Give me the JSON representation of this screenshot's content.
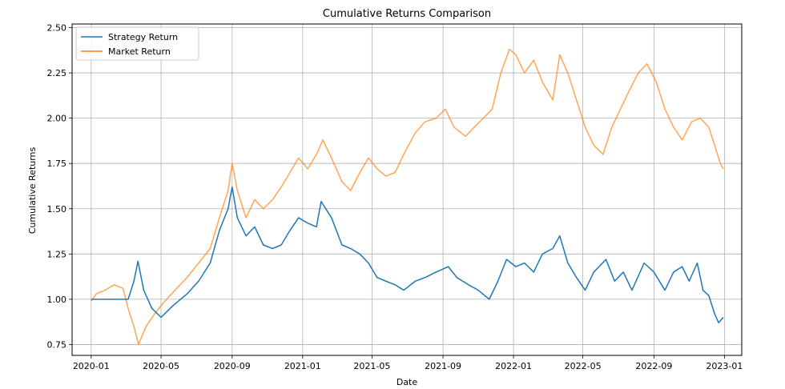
{
  "chart_data": {
    "type": "line",
    "title": "Cumulative Returns Comparison",
    "xlabel": "Date",
    "ylabel": "Cumulative Returns",
    "xlim": [
      "2019-11-29",
      "2023-01-31"
    ],
    "ylim": [
      0.69,
      2.52
    ],
    "x_ticks": [
      "2020-01",
      "2020-05",
      "2020-09",
      "2021-01",
      "2021-05",
      "2021-09",
      "2022-01",
      "2022-05",
      "2022-09",
      "2023-01"
    ],
    "x_tick_dates": [
      "2020-01-01",
      "2020-05-01",
      "2020-09-01",
      "2021-01-01",
      "2021-05-01",
      "2021-09-01",
      "2022-01-01",
      "2022-05-01",
      "2022-09-01",
      "2023-01-01"
    ],
    "y_ticks": [
      "0.75",
      "1.00",
      "1.25",
      "1.50",
      "1.75",
      "2.00",
      "2.25",
      "2.50"
    ],
    "y_tick_values": [
      0.75,
      1.0,
      1.25,
      1.5,
      1.75,
      2.0,
      2.25,
      2.5
    ],
    "grid": true,
    "legend_position": "top-left",
    "series": [
      {
        "name": "Strategy Return",
        "color": "#1f77b4",
        "points": [
          [
            "2020-01-01",
            1.0
          ],
          [
            "2020-02-15",
            1.0
          ],
          [
            "2020-03-05",
            1.0
          ],
          [
            "2020-03-15",
            1.1
          ],
          [
            "2020-03-22",
            1.21
          ],
          [
            "2020-04-01",
            1.05
          ],
          [
            "2020-04-15",
            0.95
          ],
          [
            "2020-05-01",
            0.9
          ],
          [
            "2020-05-20",
            0.96
          ],
          [
            "2020-06-15",
            1.03
          ],
          [
            "2020-07-05",
            1.1
          ],
          [
            "2020-07-25",
            1.2
          ],
          [
            "2020-08-10",
            1.38
          ],
          [
            "2020-08-25",
            1.5
          ],
          [
            "2020-09-01",
            1.62
          ],
          [
            "2020-09-10",
            1.45
          ],
          [
            "2020-09-25",
            1.35
          ],
          [
            "2020-10-10",
            1.4
          ],
          [
            "2020-10-25",
            1.3
          ],
          [
            "2020-11-10",
            1.28
          ],
          [
            "2020-11-25",
            1.3
          ],
          [
            "2020-12-10",
            1.38
          ],
          [
            "2020-12-25",
            1.45
          ],
          [
            "2021-01-10",
            1.42
          ],
          [
            "2021-01-25",
            1.4
          ],
          [
            "2021-02-02",
            1.54
          ],
          [
            "2021-02-20",
            1.45
          ],
          [
            "2021-03-10",
            1.3
          ],
          [
            "2021-03-25",
            1.28
          ],
          [
            "2021-04-10",
            1.25
          ],
          [
            "2021-04-25",
            1.2
          ],
          [
            "2021-05-10",
            1.12
          ],
          [
            "2021-05-25",
            1.1
          ],
          [
            "2021-06-10",
            1.08
          ],
          [
            "2021-06-25",
            1.05
          ],
          [
            "2021-07-15",
            1.1
          ],
          [
            "2021-08-01",
            1.12
          ],
          [
            "2021-08-20",
            1.15
          ],
          [
            "2021-09-10",
            1.18
          ],
          [
            "2021-09-25",
            1.12
          ],
          [
            "2021-10-15",
            1.08
          ],
          [
            "2021-11-01",
            1.05
          ],
          [
            "2021-11-20",
            1.0
          ],
          [
            "2021-12-05",
            1.1
          ],
          [
            "2021-12-20",
            1.22
          ],
          [
            "2022-01-05",
            1.18
          ],
          [
            "2022-01-20",
            1.2
          ],
          [
            "2022-02-05",
            1.15
          ],
          [
            "2022-02-20",
            1.25
          ],
          [
            "2022-03-10",
            1.28
          ],
          [
            "2022-03-22",
            1.35
          ],
          [
            "2022-04-05",
            1.2
          ],
          [
            "2022-04-20",
            1.12
          ],
          [
            "2022-05-05",
            1.05
          ],
          [
            "2022-05-20",
            1.15
          ],
          [
            "2022-06-10",
            1.22
          ],
          [
            "2022-06-25",
            1.1
          ],
          [
            "2022-07-10",
            1.15
          ],
          [
            "2022-07-25",
            1.05
          ],
          [
            "2022-08-15",
            1.2
          ],
          [
            "2022-09-01",
            1.15
          ],
          [
            "2022-09-20",
            1.05
          ],
          [
            "2022-10-05",
            1.15
          ],
          [
            "2022-10-20",
            1.18
          ],
          [
            "2022-11-01",
            1.1
          ],
          [
            "2022-11-15",
            1.2
          ],
          [
            "2022-11-25",
            1.05
          ],
          [
            "2022-12-05",
            1.02
          ],
          [
            "2022-12-15",
            0.92
          ],
          [
            "2022-12-22",
            0.87
          ],
          [
            "2022-12-30",
            0.9
          ]
        ]
      },
      {
        "name": "Market Return",
        "color": "#ff7f0e",
        "points": [
          [
            "2020-01-01",
            0.99
          ],
          [
            "2020-01-10",
            1.03
          ],
          [
            "2020-01-25",
            1.05
          ],
          [
            "2020-02-10",
            1.08
          ],
          [
            "2020-02-25",
            1.06
          ],
          [
            "2020-03-05",
            0.95
          ],
          [
            "2020-03-15",
            0.85
          ],
          [
            "2020-03-23",
            0.75
          ],
          [
            "2020-04-05",
            0.85
          ],
          [
            "2020-04-20",
            0.92
          ],
          [
            "2020-05-05",
            0.98
          ],
          [
            "2020-05-25",
            1.05
          ],
          [
            "2020-06-15",
            1.12
          ],
          [
            "2020-07-05",
            1.2
          ],
          [
            "2020-07-25",
            1.28
          ],
          [
            "2020-08-10",
            1.45
          ],
          [
            "2020-08-25",
            1.6
          ],
          [
            "2020-09-01",
            1.75
          ],
          [
            "2020-09-10",
            1.6
          ],
          [
            "2020-09-25",
            1.45
          ],
          [
            "2020-10-10",
            1.55
          ],
          [
            "2020-10-25",
            1.5
          ],
          [
            "2020-11-10",
            1.55
          ],
          [
            "2020-11-25",
            1.62
          ],
          [
            "2020-12-10",
            1.7
          ],
          [
            "2020-12-25",
            1.78
          ],
          [
            "2021-01-10",
            1.72
          ],
          [
            "2021-01-25",
            1.8
          ],
          [
            "2021-02-05",
            1.88
          ],
          [
            "2021-02-20",
            1.78
          ],
          [
            "2021-03-10",
            1.65
          ],
          [
            "2021-03-25",
            1.6
          ],
          [
            "2021-04-10",
            1.7
          ],
          [
            "2021-04-25",
            1.78
          ],
          [
            "2021-05-10",
            1.72
          ],
          [
            "2021-05-25",
            1.68
          ],
          [
            "2021-06-10",
            1.7
          ],
          [
            "2021-06-25",
            1.8
          ],
          [
            "2021-07-15",
            1.92
          ],
          [
            "2021-08-01",
            1.98
          ],
          [
            "2021-08-20",
            2.0
          ],
          [
            "2021-09-05",
            2.05
          ],
          [
            "2021-09-20",
            1.95
          ],
          [
            "2021-10-10",
            1.9
          ],
          [
            "2021-10-25",
            1.95
          ],
          [
            "2021-11-10",
            2.0
          ],
          [
            "2021-11-25",
            2.05
          ],
          [
            "2021-12-10",
            2.25
          ],
          [
            "2021-12-25",
            2.38
          ],
          [
            "2022-01-05",
            2.35
          ],
          [
            "2022-01-20",
            2.25
          ],
          [
            "2022-02-05",
            2.32
          ],
          [
            "2022-02-20",
            2.2
          ],
          [
            "2022-03-10",
            2.1
          ],
          [
            "2022-03-22",
            2.35
          ],
          [
            "2022-04-05",
            2.25
          ],
          [
            "2022-04-20",
            2.1
          ],
          [
            "2022-05-05",
            1.95
          ],
          [
            "2022-05-20",
            1.85
          ],
          [
            "2022-06-05",
            1.8
          ],
          [
            "2022-06-20",
            1.95
          ],
          [
            "2022-07-05",
            2.05
          ],
          [
            "2022-07-20",
            2.15
          ],
          [
            "2022-08-05",
            2.25
          ],
          [
            "2022-08-20",
            2.3
          ],
          [
            "2022-09-05",
            2.2
          ],
          [
            "2022-09-20",
            2.05
          ],
          [
            "2022-10-05",
            1.95
          ],
          [
            "2022-10-20",
            1.88
          ],
          [
            "2022-11-05",
            1.98
          ],
          [
            "2022-11-20",
            2.0
          ],
          [
            "2022-12-05",
            1.95
          ],
          [
            "2022-12-15",
            1.85
          ],
          [
            "2022-12-25",
            1.75
          ],
          [
            "2022-12-30",
            1.72
          ]
        ]
      }
    ]
  }
}
